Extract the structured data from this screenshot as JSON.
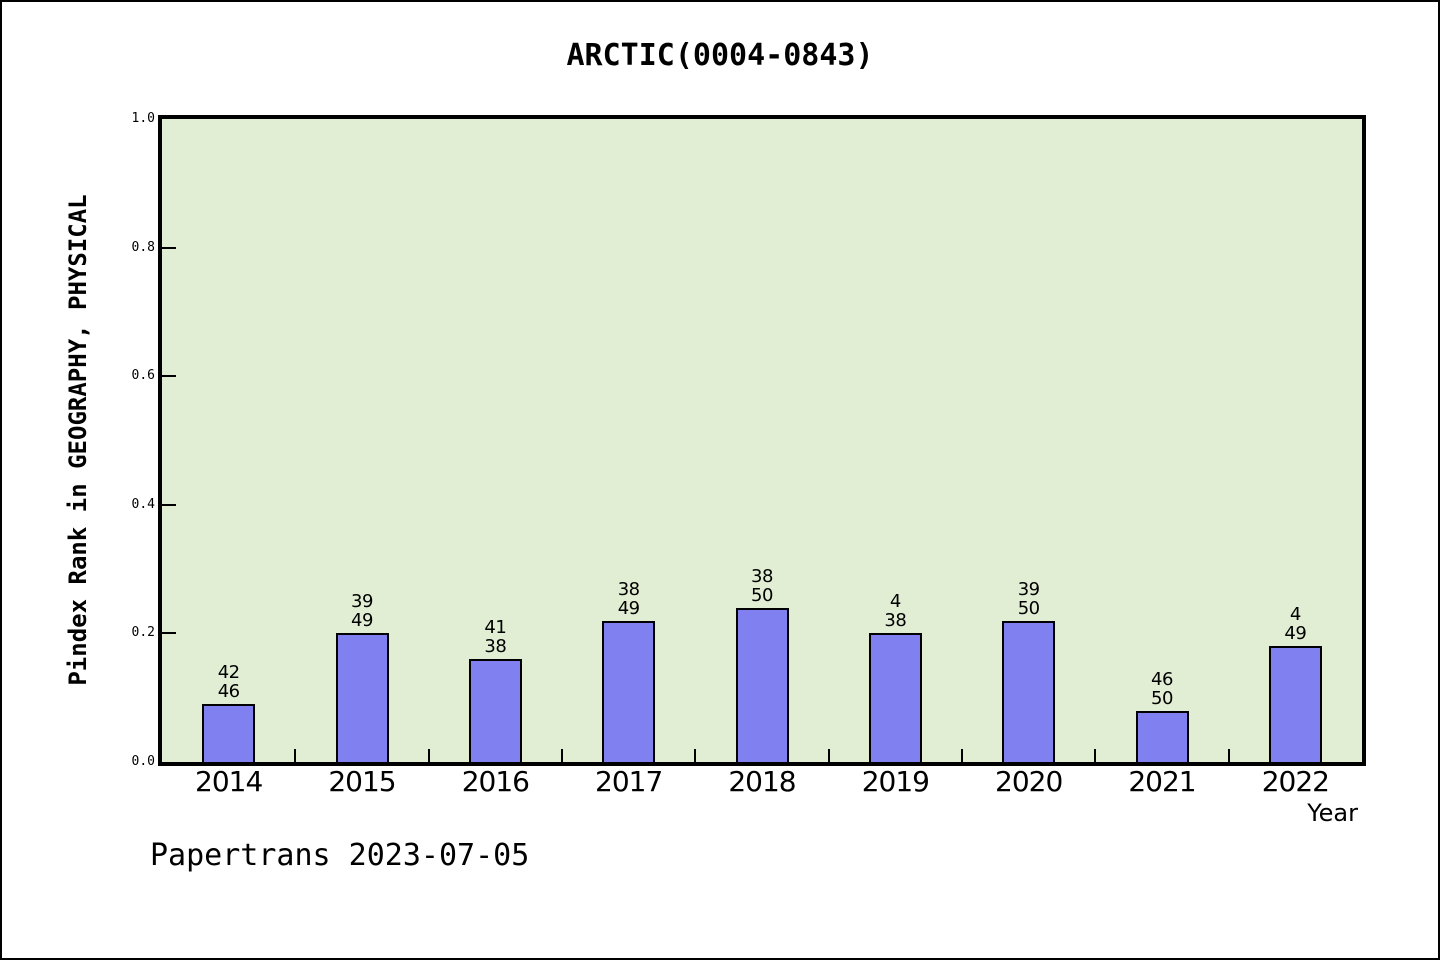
{
  "page": {
    "footer": "Papertrans 2023-07-05"
  },
  "chart_data": {
    "type": "bar",
    "title": "ARCTIC(0004-0843)",
    "xlabel": "Year",
    "ylabel": "Pindex Rank in GEOGRAPHY, PHYSICAL",
    "ylim": [
      0.0,
      1.0
    ],
    "grid": false,
    "legend": null,
    "categories": [
      "2014",
      "2015",
      "2016",
      "2017",
      "2018",
      "2019",
      "2020",
      "2021",
      "2022"
    ],
    "values": [
      0.09,
      0.2,
      0.16,
      0.22,
      0.24,
      0.2,
      0.22,
      0.08,
      0.18
    ],
    "bar_labels": [
      [
        "42",
        "46"
      ],
      [
        "39",
        "49"
      ],
      [
        "41",
        "38"
      ],
      [
        "38",
        "49"
      ],
      [
        "38",
        "50"
      ],
      [
        "4",
        "38"
      ],
      [
        "39",
        "50"
      ],
      [
        "46",
        "50"
      ],
      [
        "4",
        "49"
      ]
    ],
    "yticks": [
      0.0,
      0.2,
      0.4,
      0.6,
      0.8,
      1.0
    ],
    "ytick_labels": [
      "0.0",
      "0.2",
      "0.4",
      "0.6",
      "0.8",
      "1.0"
    ],
    "colors": {
      "bar_fill": "#8080f0",
      "bar_border": "#000000",
      "plot_bg": "#e1eed3",
      "axis": "#000000",
      "text": "#000000"
    }
  }
}
